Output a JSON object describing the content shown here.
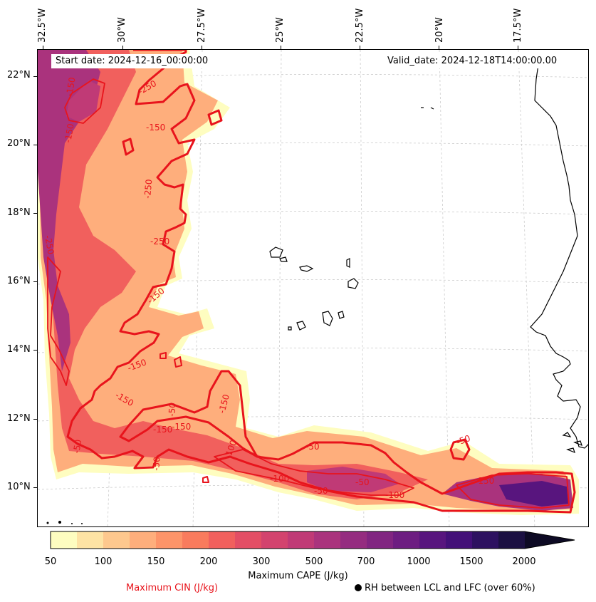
{
  "map": {
    "start_date": "Start date: 2024-12-16_00:00:00",
    "valid_date": "Valid_date: 2024-12-18T14:00:00.00",
    "lat_labels": [
      "22°N",
      "20°N",
      "18°N",
      "16°N",
      "14°N",
      "12°N",
      "10°N"
    ],
    "lon_labels": [
      "32.5°W",
      "30°W",
      "27.5°W",
      "25°W",
      "22.5°W",
      "20°W",
      "17.5°W"
    ],
    "cin_contour_labels": [
      "-150",
      "-250",
      "-150",
      "-150",
      "-250",
      "-250",
      "-250",
      "-150",
      "-150",
      "-150",
      "-150",
      "-50",
      "-150",
      "-50",
      "-150",
      "-100",
      "-50",
      "-50",
      "-100",
      "-50",
      "-50",
      "-150",
      "-50",
      "-100"
    ],
    "colors": {
      "cin_contour": "#e8141c",
      "coastline": "#000000",
      "gridline": "#cccccc"
    }
  },
  "colorbar": {
    "ticks": [
      "50",
      "100",
      "150",
      "200",
      "300",
      "500",
      "700",
      "1000",
      "1500",
      "2000"
    ],
    "levels_count": 20,
    "colors": [
      "#fefdc0",
      "#fee3a4",
      "#fec88e",
      "#feae7c",
      "#fd9469",
      "#f97b5d",
      "#f1605d",
      "#e34e65",
      "#d3436e",
      "#c03a76",
      "#aa337d",
      "#952c80",
      "#812581",
      "#6d1d81",
      "#58157e",
      "#431078",
      "#2d1160",
      "#1b1042",
      "#1b1042",
      "#0d0a24"
    ],
    "extend": "max"
  },
  "legend": {
    "cape_label": "Maximum CAPE (J/kg)",
    "cin_label": "Maximum CIN (J/kg)",
    "rh_label": "RH between LCL and LFC (over 60%)"
  }
}
